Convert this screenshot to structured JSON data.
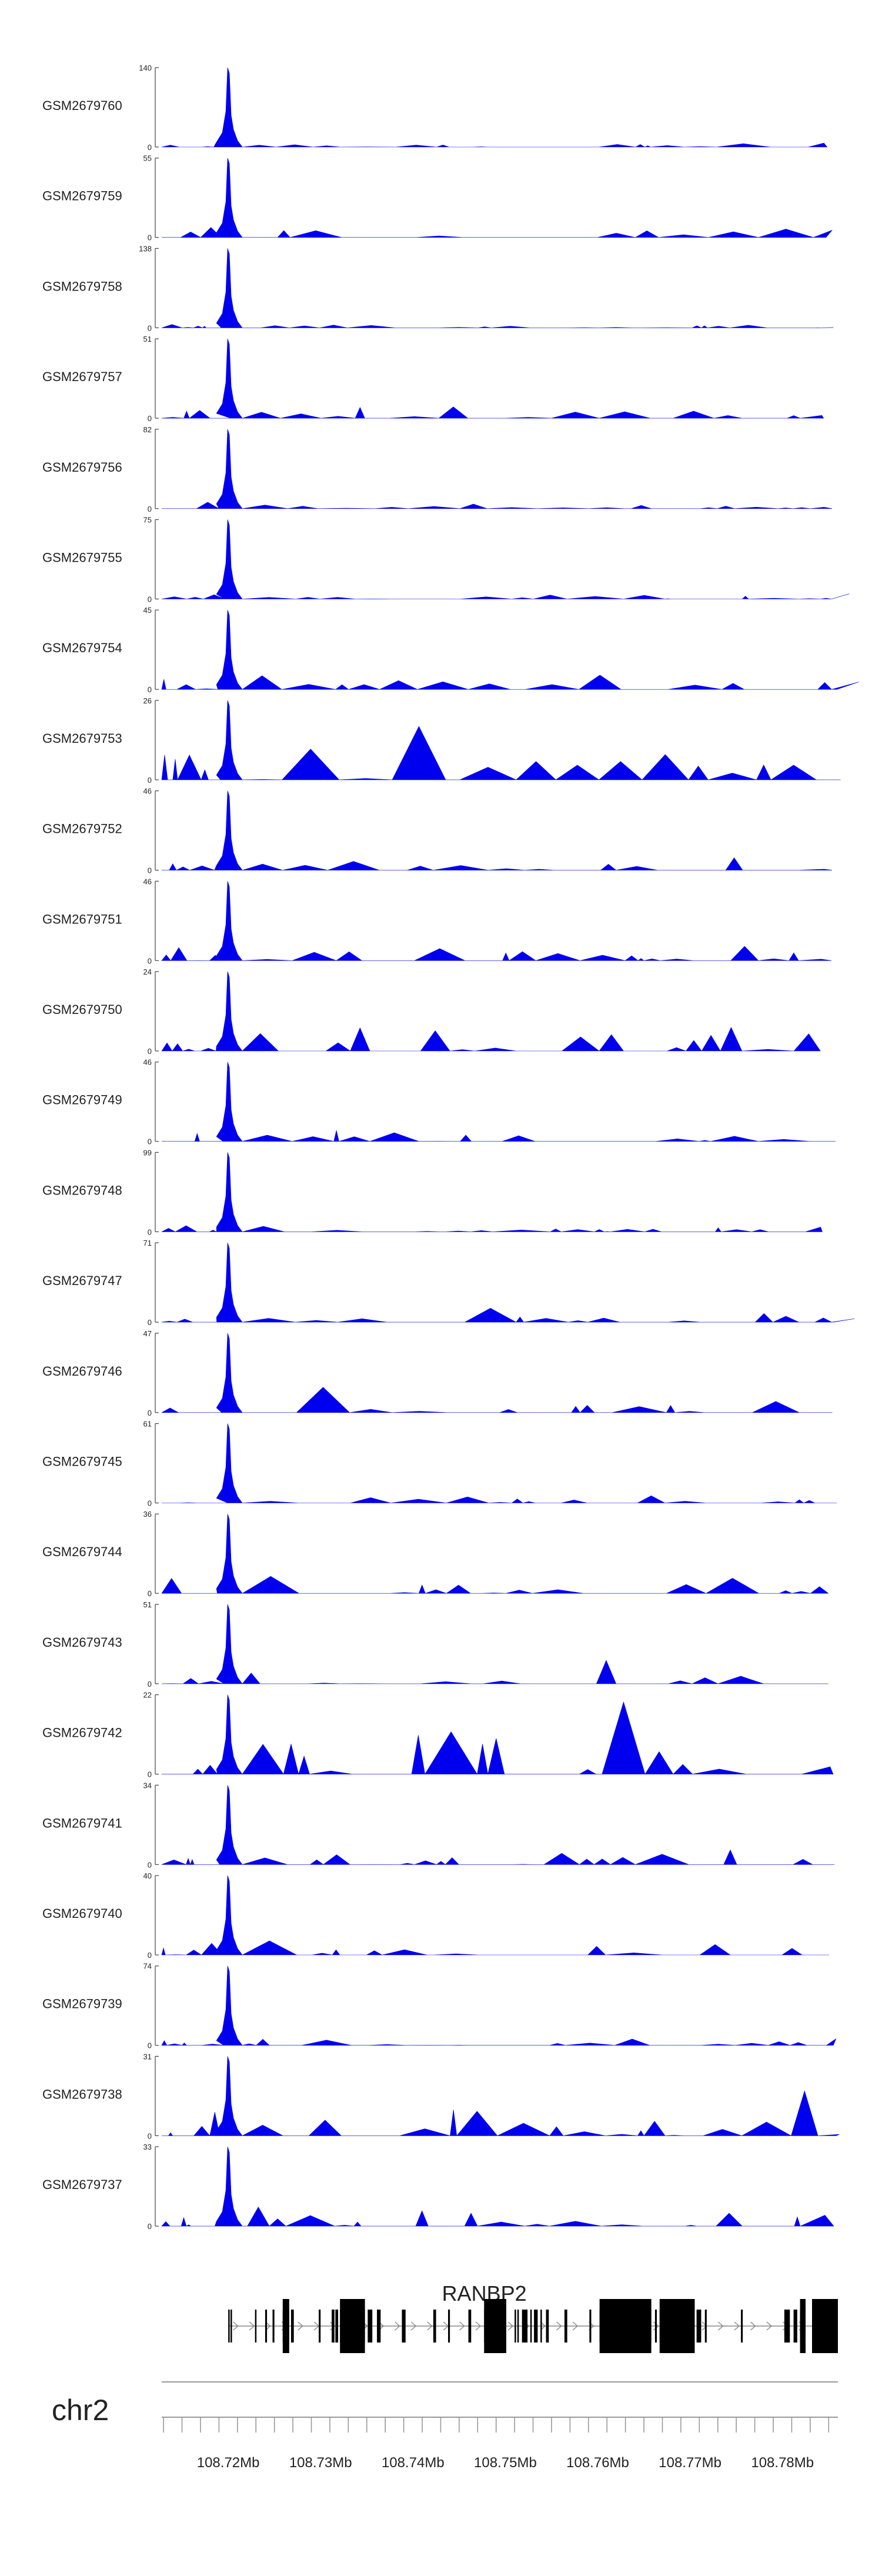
{
  "chart_data": {
    "type": "area",
    "title": "",
    "chromosome": "chr2",
    "gene": "RANBP2",
    "track_color": "#0000ee",
    "gene_color": "#000000",
    "xaxis": {
      "unit": "Mb",
      "range": [
        108.7128,
        108.786
      ],
      "ticks": [
        108.72,
        108.73,
        108.74,
        108.75,
        108.76,
        108.77,
        108.78
      ],
      "tick_labels": [
        "108.72Mb",
        "108.73Mb",
        "108.74Mb",
        "108.75Mb",
        "108.76Mb",
        "108.77Mb",
        "108.78Mb"
      ]
    },
    "peak_center": 108.72,
    "tracks": [
      {
        "name": "GSM2679760",
        "ymax": 140,
        "ymin": 0,
        "peak": 140,
        "baseline": 5
      },
      {
        "name": "GSM2679759",
        "ymax": 55,
        "ymin": 0,
        "peak": 55,
        "baseline": 6
      },
      {
        "name": "GSM2679758",
        "ymax": 138,
        "ymin": 0,
        "peak": 138,
        "baseline": 4
      },
      {
        "name": "GSM2679757",
        "ymax": 51,
        "ymin": 0,
        "peak": 51,
        "baseline": 6
      },
      {
        "name": "GSM2679756",
        "ymax": 82,
        "ymin": 0,
        "peak": 82,
        "baseline": 5
      },
      {
        "name": "GSM2679755",
        "ymax": 75,
        "ymin": 0,
        "peak": 75,
        "baseline": 4
      },
      {
        "name": "GSM2679754",
        "ymax": 45,
        "ymin": 0,
        "peak": 45,
        "baseline": 7
      },
      {
        "name": "GSM2679753",
        "ymax": 26,
        "ymin": 0,
        "peak": 26,
        "baseline": 7
      },
      {
        "name": "GSM2679752",
        "ymax": 46,
        "ymin": 0,
        "peak": 46,
        "baseline": 5
      },
      {
        "name": "GSM2679751",
        "ymax": 46,
        "ymin": 0,
        "peak": 46,
        "baseline": 6
      },
      {
        "name": "GSM2679750",
        "ymax": 24,
        "ymin": 0,
        "peak": 24,
        "baseline": 7
      },
      {
        "name": "GSM2679749",
        "ymax": 46,
        "ymin": 0,
        "peak": 46,
        "baseline": 5
      },
      {
        "name": "GSM2679748",
        "ymax": 99,
        "ymin": 0,
        "peak": 99,
        "baseline": 5
      },
      {
        "name": "GSM2679747",
        "ymax": 71,
        "ymin": 0,
        "peak": 71,
        "baseline": 5
      },
      {
        "name": "GSM2679746",
        "ymax": 47,
        "ymin": 0,
        "peak": 47,
        "baseline": 6
      },
      {
        "name": "GSM2679745",
        "ymax": 61,
        "ymin": 0,
        "peak": 61,
        "baseline": 5
      },
      {
        "name": "GSM2679744",
        "ymax": 36,
        "ymin": 0,
        "peak": 36,
        "baseline": 6
      },
      {
        "name": "GSM2679743",
        "ymax": 51,
        "ymin": 0,
        "peak": 51,
        "baseline": 6
      },
      {
        "name": "GSM2679742",
        "ymax": 22,
        "ymin": 0,
        "peak": 22,
        "baseline": 8
      },
      {
        "name": "GSM2679741",
        "ymax": 34,
        "ymin": 0,
        "peak": 34,
        "baseline": 6
      },
      {
        "name": "GSM2679740",
        "ymax": 40,
        "ymin": 0,
        "peak": 40,
        "baseline": 6
      },
      {
        "name": "GSM2679739",
        "ymax": 74,
        "ymin": 0,
        "peak": 74,
        "baseline": 5
      },
      {
        "name": "GSM2679738",
        "ymax": 31,
        "ymin": 0,
        "peak": 31,
        "baseline": 7
      },
      {
        "name": "GSM2679737",
        "ymax": 33,
        "ymin": 0,
        "peak": 33,
        "baseline": 6
      }
    ],
    "gene_model": {
      "start": 108.72,
      "end": 108.786,
      "strand": "+",
      "exons": [
        [
          108.72,
          108.72015
        ],
        [
          108.72025,
          108.7204
        ],
        [
          108.7229,
          108.723
        ],
        [
          108.724,
          108.7242
        ],
        [
          108.7248,
          108.725
        ],
        [
          108.7259,
          108.7266
        ],
        [
          108.7268,
          108.7271
        ],
        [
          108.7298,
          108.73
        ],
        [
          108.7312,
          108.7315
        ],
        [
          108.7316,
          108.7319
        ],
        [
          108.7321,
          108.7348
        ],
        [
          108.7351,
          108.7356
        ],
        [
          108.7361,
          108.7365
        ],
        [
          108.7388,
          108.7392
        ],
        [
          108.7422,
          108.7425
        ],
        [
          108.7438,
          108.744
        ],
        [
          108.746,
          108.7463
        ],
        [
          108.7477,
          108.7501
        ],
        [
          108.751,
          108.7511
        ],
        [
          108.7513,
          108.7514
        ],
        [
          108.7518,
          108.7524
        ],
        [
          108.7527,
          108.7528
        ],
        [
          108.7531,
          108.7535
        ],
        [
          108.7538,
          108.7539
        ],
        [
          108.7544,
          108.7547
        ],
        [
          108.7564,
          108.7567
        ],
        [
          108.7591,
          108.7593
        ],
        [
          108.7602,
          108.7635
        ],
        [
          108.7635,
          108.7658
        ],
        [
          108.7662,
          108.7664
        ],
        [
          108.7667,
          108.7705
        ],
        [
          108.7707,
          108.7712
        ],
        [
          108.7716,
          108.7718
        ],
        [
          108.7755,
          108.7757
        ],
        [
          108.7802,
          108.7808
        ],
        [
          108.7812,
          108.7816
        ],
        [
          108.7819,
          108.7825
        ],
        [
          108.7832,
          108.786
        ]
      ],
      "thick_exons": [
        [
          108.7259,
          108.7266
        ],
        [
          108.7321,
          108.7348
        ],
        [
          108.7477,
          108.7501
        ],
        [
          108.7602,
          108.7658
        ],
        [
          108.7667,
          108.7705
        ],
        [
          108.7819,
          108.7825
        ],
        [
          108.7832,
          108.786
        ]
      ]
    }
  }
}
